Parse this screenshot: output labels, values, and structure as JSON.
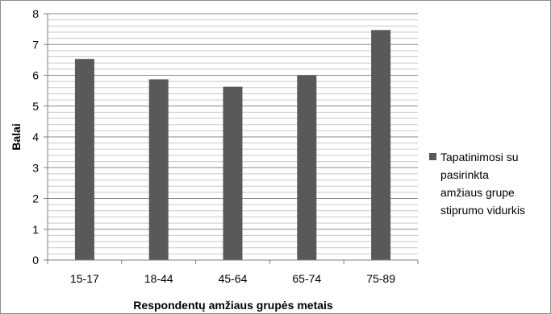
{
  "chart_data": {
    "type": "bar",
    "categories": [
      "15-17",
      "18-44",
      "45-64",
      "65-74",
      "75-89"
    ],
    "series": [
      {
        "name": "Tapatinimosi su pasirinkta amžiaus grupe stiprumo vidurkis",
        "values": [
          6.53,
          5.87,
          5.63,
          6.0,
          7.47
        ],
        "color": "#595959"
      }
    ],
    "title": "",
    "xlabel": "Respondentų amžiaus grupės metais",
    "ylabel": "Balai",
    "ylim": [
      0,
      8
    ],
    "yticks": [
      0,
      1,
      2,
      3,
      4,
      5,
      6,
      7,
      8
    ],
    "grid": true,
    "legend_position": "right",
    "legend_lines": [
      "Tapatinimosi su",
      "pasirinkta",
      "amžiaus grupe",
      "stiprumo vidurkis"
    ]
  }
}
